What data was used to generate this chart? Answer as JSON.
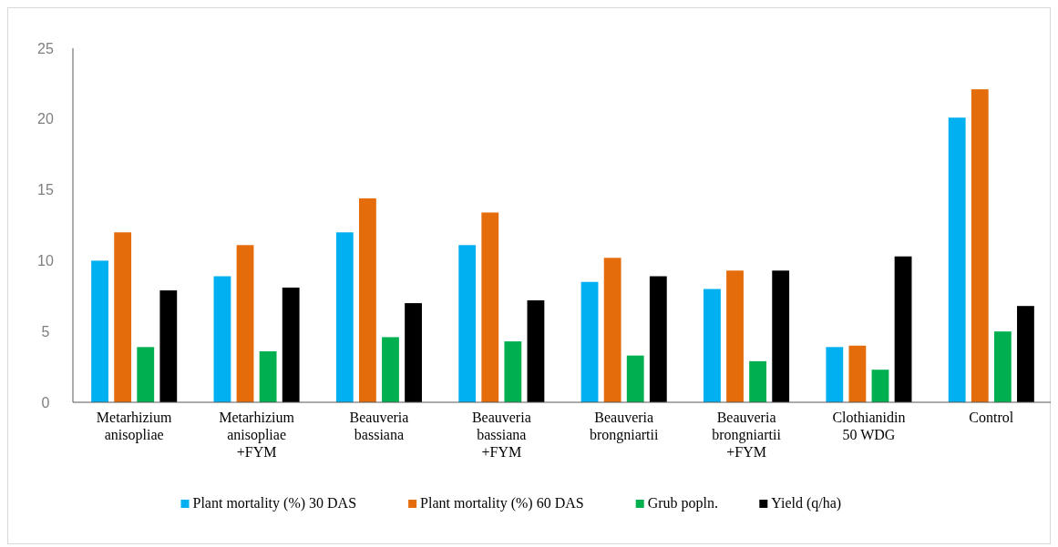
{
  "chart_data": {
    "type": "bar",
    "categories": [
      "Metarhizium anisopliae",
      "Metarhizium anisopliae +FYM",
      "Beauveria bassiana",
      "Beauveria bassiana +FYM",
      "Beauveria brongniartii",
      "Beauveria brongniartii +FYM",
      "Clothianidin 50 WDG",
      "Control"
    ],
    "series": [
      {
        "name": "Plant mortality (%) 30 DAS",
        "color": "#00b0f0",
        "values": [
          10.0,
          8.9,
          12.0,
          11.1,
          8.5,
          8.0,
          3.9,
          20.1
        ]
      },
      {
        "name": "Plant mortality (%) 60 DAS",
        "color": "#e46c0a",
        "values": [
          12.0,
          11.1,
          14.4,
          13.4,
          10.2,
          9.3,
          4.0,
          22.1
        ]
      },
      {
        "name": "Grub popln.",
        "color": "#00b050",
        "values": [
          3.9,
          3.6,
          4.6,
          4.3,
          3.3,
          2.9,
          2.3,
          5.0
        ]
      },
      {
        "name": "Yield (q/ha)",
        "color": "#000000",
        "values": [
          7.9,
          8.1,
          7.0,
          7.2,
          8.9,
          9.3,
          10.3,
          6.8
        ]
      }
    ],
    "ylim": [
      0,
      25
    ],
    "yticks": [
      0,
      5,
      10,
      15,
      20,
      25
    ],
    "grid": false,
    "legend": "bottom"
  }
}
